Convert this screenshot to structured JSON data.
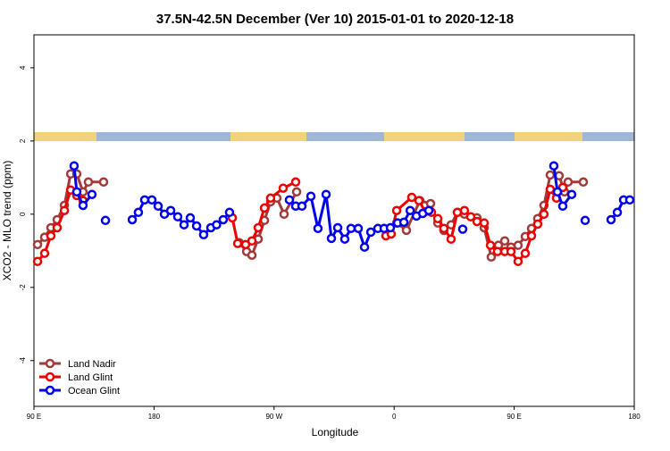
{
  "chart_data": {
    "type": "line",
    "title": "37.5N-42.5N December (Ver 10)   2015-01-01 to 2020-12-18",
    "x_label": "Longitude",
    "y_label": "XCO2 - MLO trend (ppm)",
    "xlim": [
      90,
      540
    ],
    "ylim": [
      -5.25,
      4.9
    ],
    "xticks": [
      {
        "value": 90,
        "label": "90 E"
      },
      {
        "value": 180,
        "label": "180"
      },
      {
        "value": 270,
        "label": "90 W"
      },
      {
        "value": 360,
        "label": "0"
      },
      {
        "value": 450,
        "label": "90 E"
      },
      {
        "value": 540,
        "label": "180"
      }
    ],
    "yticks": [
      -4,
      -2,
      0,
      2,
      4
    ],
    "legend": "bottom-left",
    "series": [
      {
        "name": "Land Nadir",
        "color": "#a33a3a",
        "x": [
          92.7,
          98.0,
          102.7,
          107.4,
          112.8,
          117.5,
          122.1,
          126.8,
          130.8,
          142.2,
          null,
          244.0,
          249.4,
          253.4,
          258.1,
          262.8,
          267.4,
          272.1,
          277.5,
          286.9,
          null,
          361.9,
          369.2,
          379.3,
          387.3,
          392.7,
          397.3,
          402.7,
          407.4,
          412.7,
          422.1,
          427.5,
          432.8,
          438.2,
          442.9,
          447.6,
          452.9,
          458.3,
          463.0,
          467.6,
          472.3,
          477.0,
          483.7,
          487.7,
          490.4,
          501.8
        ],
        "values": [
          -0.83,
          -0.63,
          -0.37,
          -0.15,
          0.24,
          1.1,
          1.1,
          0.61,
          0.88,
          0.88,
          null,
          -0.78,
          -1.02,
          -1.12,
          -0.68,
          -0.17,
          0.34,
          0.44,
          0,
          0.61,
          null,
          -0.24,
          -0.44,
          0.37,
          0.29,
          -0.24,
          -0.44,
          -0.29,
          0.05,
          0,
          -0.1,
          -0.37,
          -1.17,
          -0.85,
          -0.73,
          -0.9,
          -0.85,
          -0.61,
          -0.39,
          -0.12,
          0.24,
          1.07,
          1.05,
          0.61,
          0.88,
          0.88
        ]
      },
      {
        "name": "Land Glint",
        "color": "#ee0000",
        "x": [
          92.7,
          98.0,
          102.7,
          107.4,
          112.8,
          117.5,
          122.1,
          126.8,
          null,
          238.7,
          242.7,
          248.7,
          253.4,
          258.1,
          262.8,
          267.4,
          276.8,
          286.2,
          null,
          353.8,
          357.8,
          361.9,
          373.2,
          378.6,
          383.3,
          388.0,
          392.7,
          397.3,
          402.7,
          407.4,
          412.7,
          417.4,
          422.1,
          427.5,
          432.2,
          437.5,
          442.9,
          447.6,
          452.9,
          458.3,
          463.0,
          467.6,
          472.3,
          477.0,
          481.7,
          486.4
        ],
        "values": [
          -1.29,
          -1.07,
          -0.59,
          -0.37,
          0.1,
          0.66,
          0.51,
          0.37,
          null,
          -0.1,
          -0.8,
          -0.83,
          -0.73,
          -0.37,
          0.17,
          0.44,
          0.71,
          0.88,
          null,
          -0.59,
          -0.54,
          0.1,
          0.46,
          0.37,
          0.07,
          0.05,
          -0.12,
          -0.39,
          -0.68,
          0.05,
          0.1,
          -0.07,
          -0.2,
          -0.24,
          -0.85,
          -1.02,
          -1.02,
          -1.02,
          -1.29,
          -1.07,
          -0.59,
          -0.27,
          0,
          0.68,
          0.44,
          0.73
        ]
      },
      {
        "name": "Ocean Glint",
        "color": "#0000ee",
        "x": [
          120.1,
          122.1,
          126.8,
          133.5,
          null,
          143.6,
          null,
          163.7,
          168.3,
          173.0,
          178.4,
          183.1,
          187.8,
          192.5,
          197.8,
          202.5,
          207.2,
          211.9,
          217.2,
          222.6,
          226.9,
          231.9,
          236.6,
          null,
          281.5,
          286.2,
          290.9,
          297.6,
          302.9,
          309.0,
          313.0,
          317.7,
          323.0,
          327.7,
          333.1,
          337.8,
          342.5,
          347.8,
          352.5,
          357.2,
          362.6,
          367.3,
          372.0,
          376.7,
          381.4,
          386.0,
          null,
          411.4,
          null,
          479.7,
          482.4,
          486.4,
          493.1,
          null,
          503.2,
          null,
          522.6,
          527.3,
          532.0,
          536.6
        ],
        "values": [
          1.32,
          0.61,
          0.24,
          0.54,
          null,
          -0.17,
          null,
          -0.15,
          0.05,
          0.39,
          0.39,
          0.22,
          0,
          0.1,
          -0.07,
          -0.29,
          -0.1,
          -0.32,
          -0.56,
          -0.37,
          -0.29,
          -0.15,
          0.05,
          null,
          0.39,
          0.22,
          0.22,
          0.49,
          -0.39,
          0.54,
          -0.66,
          -0.37,
          -0.68,
          -0.39,
          -0.39,
          -0.9,
          -0.49,
          -0.39,
          -0.39,
          -0.37,
          -0.24,
          -0.22,
          0.1,
          -0.05,
          0.02,
          0.1,
          null,
          -0.41,
          null,
          1.32,
          0.61,
          0.22,
          0.54,
          null,
          -0.17,
          null,
          -0.15,
          0.05,
          0.39,
          0.39
        ]
      }
    ]
  }
}
